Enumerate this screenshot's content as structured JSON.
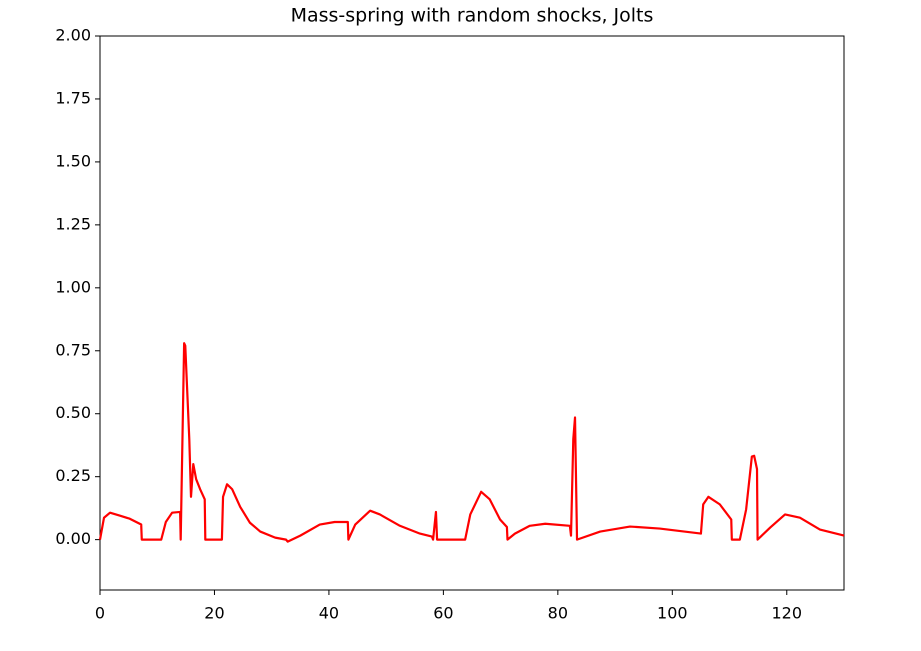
{
  "chart_data": {
    "type": "line",
    "title": "Mass-spring with random shocks, Jolts",
    "x": [
      0,
      0.7,
      1.75,
      3.5,
      5.2,
      7.2,
      7.3,
      10.7,
      11.5,
      12.6,
      14.0,
      14.1,
      14.7,
      14.9,
      15.6,
      15.9,
      16.3,
      16.8,
      17.5,
      18.3,
      18.4,
      21.3,
      21.5,
      22.2,
      23.1,
      24.5,
      26.2,
      28,
      30.6,
      32.5,
      32.8,
      35,
      38.4,
      41,
      43.3,
      43.4,
      44.6,
      47.2,
      48.9,
      52.4,
      55.9,
      58,
      58.2,
      58.7,
      58.9,
      63.8,
      64.7,
      66.6,
      68.1,
      69.9,
      71.1,
      71.2,
      72.5,
      75.1,
      77.8,
      82.1,
      82.3,
      82.7,
      83.0,
      83.35,
      87.4,
      92.6,
      97.8,
      105,
      105.4,
      106.3,
      108.3,
      110.3,
      110.4,
      111.8,
      112.9,
      113.9,
      114.3,
      114.8,
      114.9,
      117.1,
      119.7,
      122.3,
      125.8,
      130
    ],
    "series": [
      {
        "color": "#ff0000",
        "values": [
          0,
          0.087,
          0.107,
          0.095,
          0.083,
          0.06,
          0,
          0,
          0.07,
          0.107,
          0.11,
          0,
          0.78,
          0.77,
          0.4,
          0.17,
          0.3,
          0.24,
          0.2,
          0.16,
          0,
          0,
          0.17,
          0.22,
          0.2,
          0.13,
          0.067,
          0.032,
          0.008,
          0,
          -0.008,
          0.016,
          0.06,
          0.07,
          0.07,
          0,
          0.06,
          0.115,
          0.1,
          0.055,
          0.024,
          0.012,
          0,
          0.11,
          0,
          0,
          0.1,
          0.19,
          0.16,
          0.08,
          0.05,
          0,
          0.024,
          0.055,
          0.063,
          0.055,
          0.016,
          0.4,
          0.485,
          0,
          0.032,
          0.052,
          0.044,
          0.024,
          0.14,
          0.17,
          0.14,
          0.08,
          0,
          0,
          0.12,
          0.33,
          0.333,
          0.28,
          0,
          0.048,
          0.1,
          0.087,
          0.04,
          0.016
        ]
      }
    ],
    "xlim": [
      0,
      130
    ],
    "ylim": [
      -0.2,
      2.0
    ],
    "xticks": [
      0,
      20,
      40,
      60,
      80,
      100,
      120
    ],
    "yticks": [
      {
        "value": 0,
        "label": "0.00"
      },
      {
        "value": 0.25,
        "label": "0.25"
      },
      {
        "value": 0.5,
        "label": "0.50"
      },
      {
        "value": 0.75,
        "label": "0.75"
      },
      {
        "value": 1,
        "label": "1.00"
      },
      {
        "value": 1.25,
        "label": "1.25"
      },
      {
        "value": 1.5,
        "label": "1.50"
      },
      {
        "value": 1.75,
        "label": "1.75"
      },
      {
        "value": 2,
        "label": "2.00"
      }
    ],
    "grid": false
  }
}
